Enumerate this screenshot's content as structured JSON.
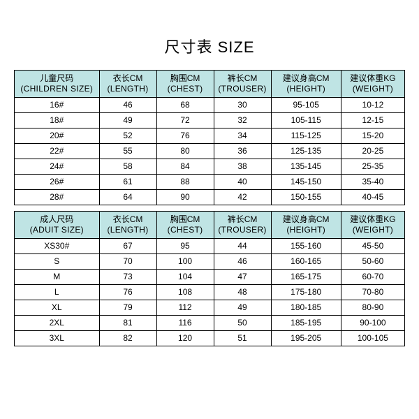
{
  "title": "尺寸表 SIZE",
  "header_bg": "#bfe4e4",
  "border_color": "#000000",
  "columns": [
    {
      "cn": "儿童尺码",
      "en": "(CHILDREN SIZE)",
      "cn2": "成人尺码",
      "en2": "(ADUIT SIZE)"
    },
    {
      "cn": "衣长CM",
      "en": "(LENGTH)"
    },
    {
      "cn": "胸围CM",
      "en": "(CHEST)"
    },
    {
      "cn": "裤长CM",
      "en": "(TROUSER)"
    },
    {
      "cn": "建议身高CM",
      "en": "(HEIGHT)"
    },
    {
      "cn": "建议体重KG",
      "en": "(WEIGHT)"
    }
  ],
  "children_rows": [
    [
      "16#",
      "46",
      "68",
      "30",
      "95-105",
      "10-12"
    ],
    [
      "18#",
      "49",
      "72",
      "32",
      "105-115",
      "12-15"
    ],
    [
      "20#",
      "52",
      "76",
      "34",
      "115-125",
      "15-20"
    ],
    [
      "22#",
      "55",
      "80",
      "36",
      "125-135",
      "20-25"
    ],
    [
      "24#",
      "58",
      "84",
      "38",
      "135-145",
      "25-35"
    ],
    [
      "26#",
      "61",
      "88",
      "40",
      "145-150",
      "35-40"
    ],
    [
      "28#",
      "64",
      "90",
      "42",
      "150-155",
      "40-45"
    ]
  ],
  "adult_rows": [
    [
      "XS30#",
      "67",
      "95",
      "44",
      "155-160",
      "45-50"
    ],
    [
      "S",
      "70",
      "100",
      "46",
      "160-165",
      "50-60"
    ],
    [
      "M",
      "73",
      "104",
      "47",
      "165-175",
      "60-70"
    ],
    [
      "L",
      "76",
      "108",
      "48",
      "175-180",
      "70-80"
    ],
    [
      "XL",
      "79",
      "112",
      "49",
      "180-185",
      "80-90"
    ],
    [
      "2XL",
      "81",
      "116",
      "50",
      "185-195",
      "90-100"
    ],
    [
      "3XL",
      "82",
      "120",
      "51",
      "195-205",
      "100-105"
    ]
  ]
}
